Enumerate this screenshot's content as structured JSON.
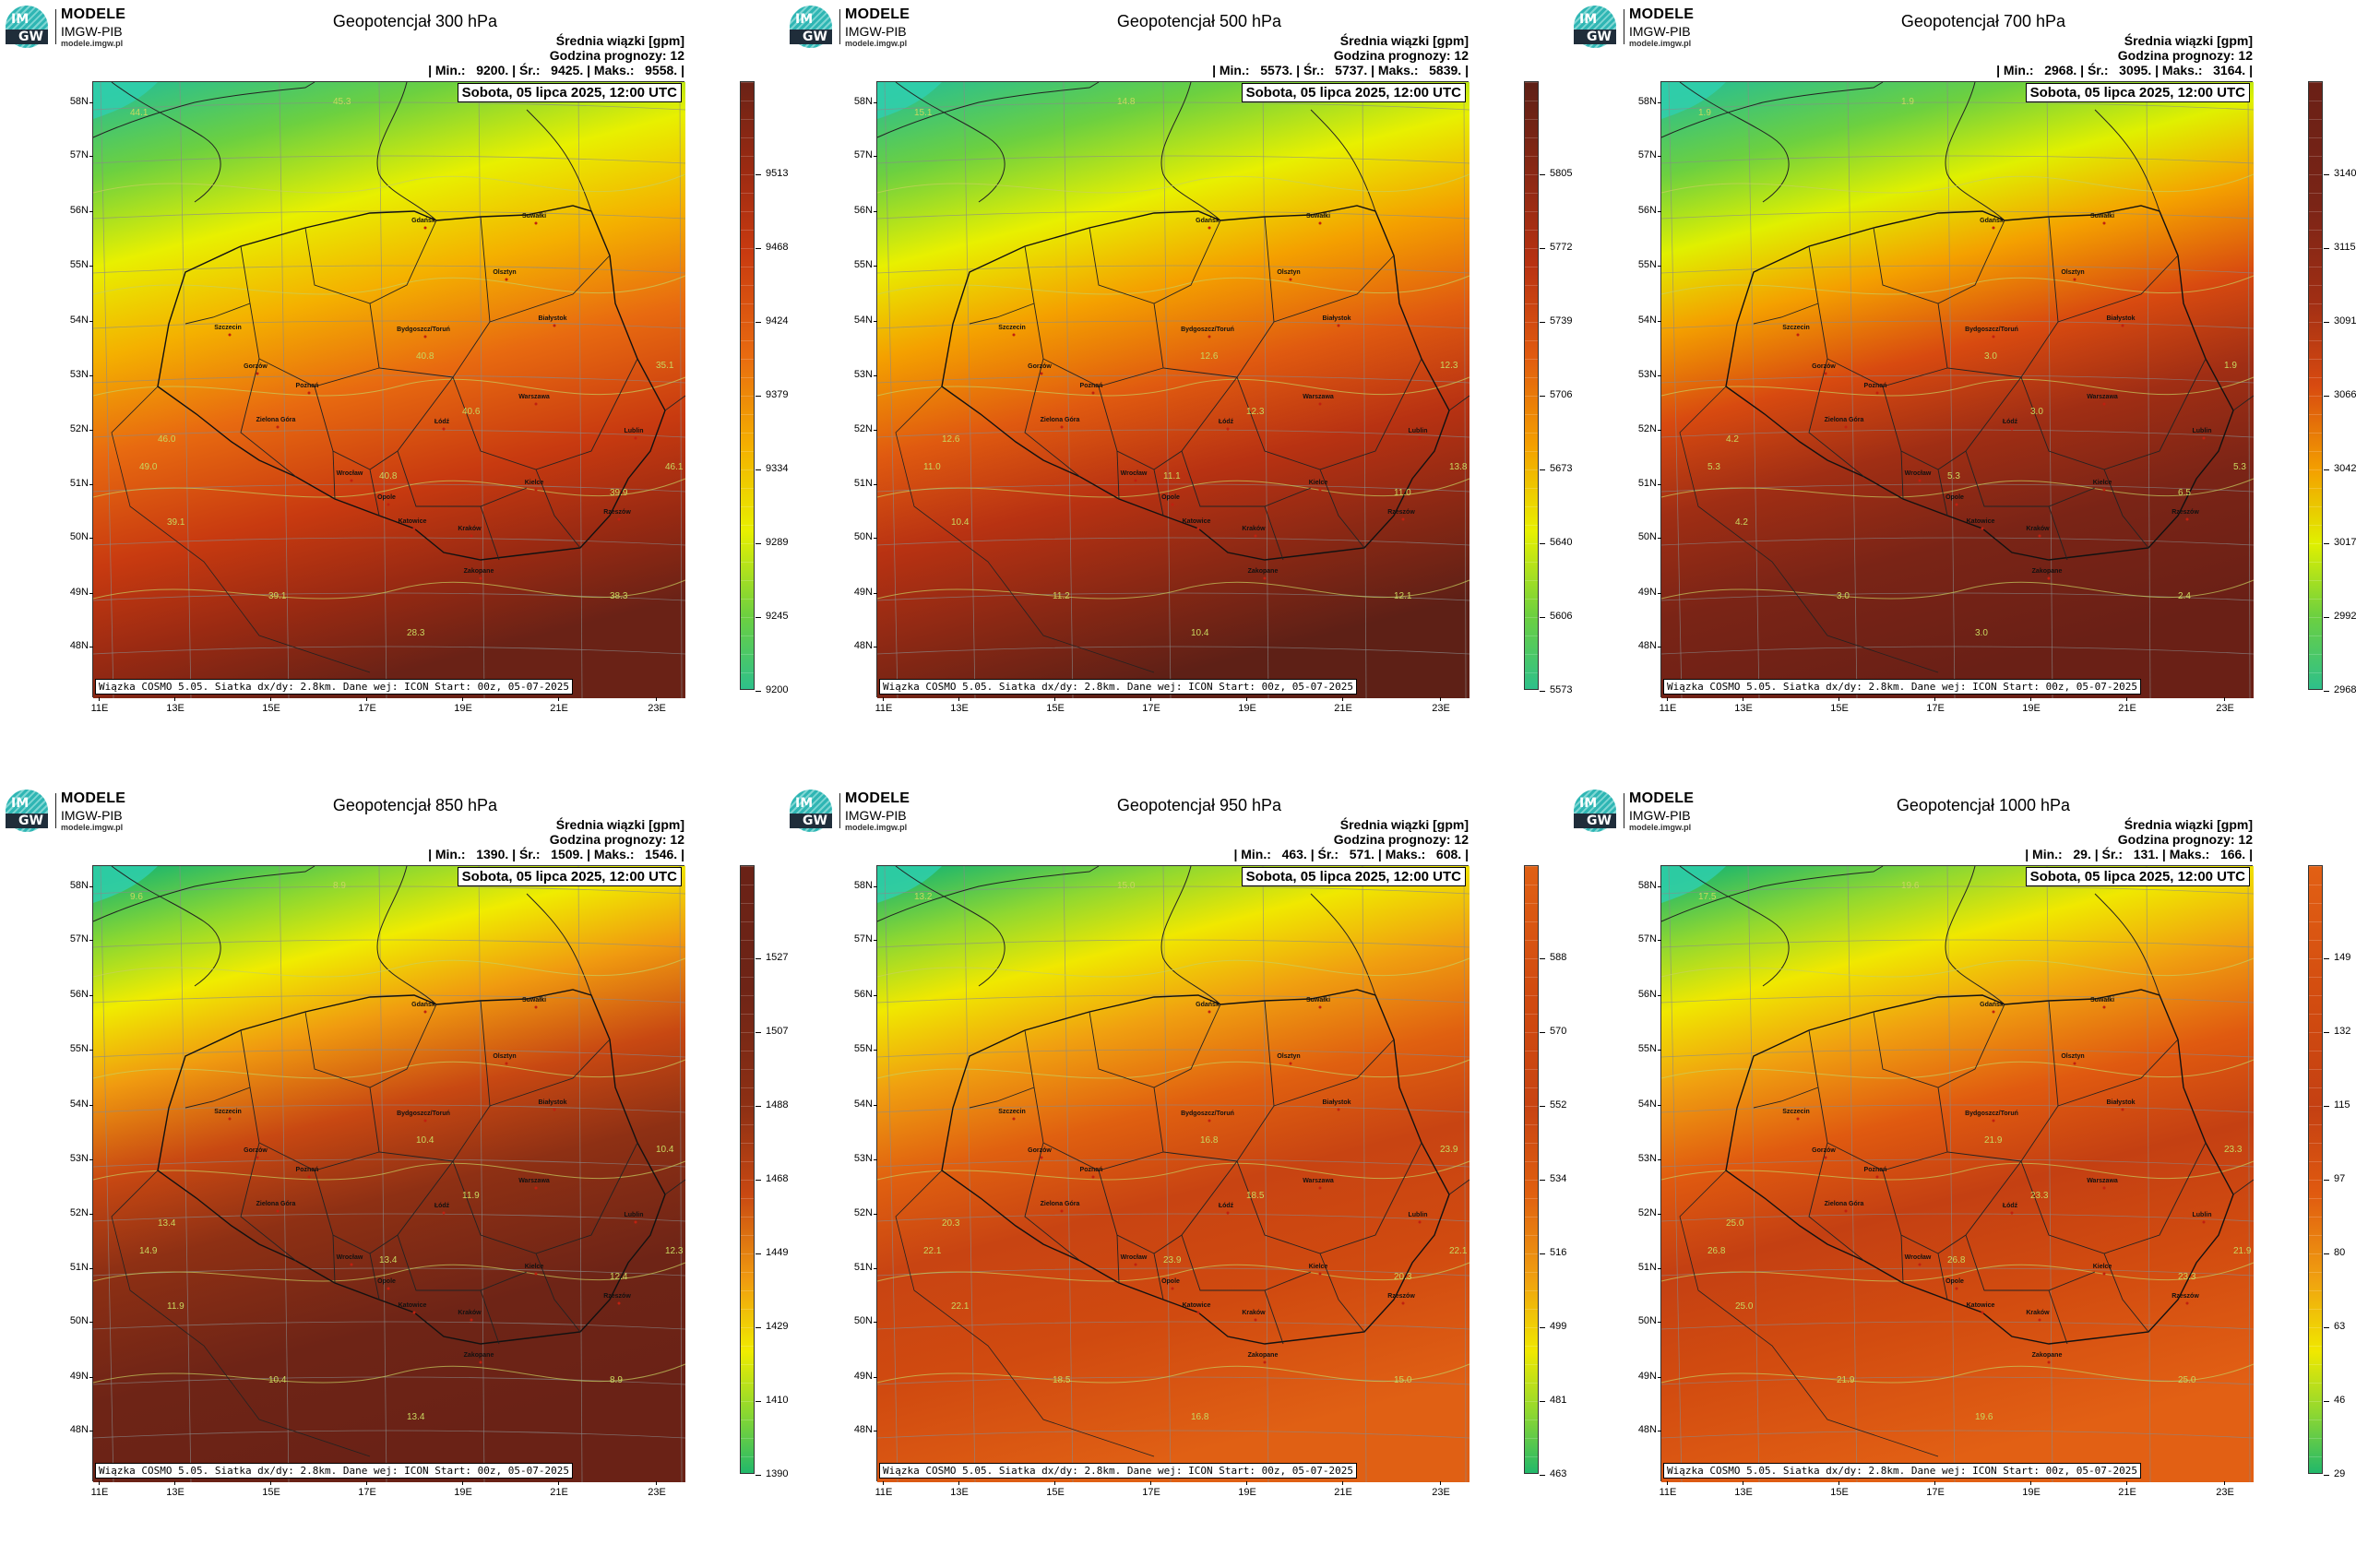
{
  "logo": {
    "line1": "MODELE",
    "line2": "IMGW-PIB",
    "line3": "modele.imgw.pl",
    "mark_top": "IM",
    "mark_bottom": "GW"
  },
  "info_title": "Średnia wiązki [gpm]",
  "forecast_hour": "Godzina prognozy: 12",
  "date_label": "Sobota, 05 lipca 2025, 12:00 UTC",
  "footer": "Wiązka COSMO 5.05. Siatka dx/dy: 2.8km. Dane wej: ICON Start: 00z, 05-07-2025",
  "lat_labels": [
    "58N",
    "57N",
    "56N",
    "55N",
    "54N",
    "53N",
    "52N",
    "51N",
    "50N",
    "49N",
    "48N"
  ],
  "lon_labels": [
    "11E",
    "13E",
    "15E",
    "17E",
    "19E",
    "21E",
    "23E"
  ],
  "colors": {
    "low": "#44e8d8",
    "green": "#22b14c",
    "yellow": "#f4f000",
    "orange": "#f08a10",
    "red": "#d83810",
    "dark": "#5a1e14"
  },
  "cities": [
    "Gdańsk",
    "Suwałki",
    "Olsztyn",
    "Szczecin",
    "Białystok",
    "Bydgoszcz/Toruń",
    "Gorzów",
    "Poznań",
    "Warszawa",
    "Zielona Góra",
    "Łódź",
    "Lublin",
    "Wrocław",
    "Opole",
    "Kielce",
    "Katowice",
    "Kraków",
    "Rzeszów",
    "Zakopane"
  ],
  "panels": [
    {
      "title": "Geopotencjał 300 hPa",
      "stats": "| Min.:   9200. | Śr.:   9425. | Maks.:   9558. |",
      "colorbar": [
        "9200",
        "9245",
        "9289",
        "9334",
        "9379",
        "9424",
        "9468",
        "9513"
      ],
      "contours": [
        "44.1",
        "45.3",
        "40.8",
        "40.6",
        "46.0",
        "49.0",
        "40.8",
        "39.1",
        "39.9",
        "39.1",
        "28.3",
        "38.3",
        "35.1",
        "46.1"
      ]
    },
    {
      "title": "Geopotencjał 500 hPa",
      "stats": "| Min.:   5573. | Śr.:   5737. | Maks.:   5839. |",
      "colorbar": [
        "5573",
        "5606",
        "5640",
        "5673",
        "5706",
        "5739",
        "5772",
        "5805"
      ],
      "contours": [
        "15.1",
        "14.8",
        "12.6",
        "12.3",
        "12.6",
        "11.0",
        "11.1",
        "10.4",
        "11.0",
        "11.2",
        "10.4",
        "12.1",
        "12.3",
        "13.8"
      ]
    },
    {
      "title": "Geopotencjał 700 hPa",
      "stats": "| Min.:   2968. | Śr.:   3095. | Maks.:   3164. |",
      "colorbar": [
        "2968",
        "2992",
        "3017",
        "3042",
        "3066",
        "3091",
        "3115",
        "3140"
      ],
      "contours": [
        "1.9",
        "1.9",
        "3.0",
        "3.0",
        "4.2",
        "5.3",
        "5.3",
        "4.2",
        "6.5",
        "3.0",
        "3.0",
        "2.4",
        "1.9",
        "5.3"
      ]
    },
    {
      "title": "Geopotencjał 850 hPa",
      "stats": "| Min.:   1390. | Śr.:   1509. | Maks.:   1546. |",
      "colorbar": [
        "1390",
        "1410",
        "1429",
        "1449",
        "1468",
        "1488",
        "1507",
        "1527"
      ],
      "contours": [
        "9.6",
        "8.9",
        "10.4",
        "11.9",
        "13.4",
        "14.9",
        "13.4",
        "11.9",
        "12.4",
        "10.4",
        "13.4",
        "8.9",
        "10.4",
        "12.3"
      ]
    },
    {
      "title": "Geopotencjał 950 hPa",
      "stats": "| Min.:   463. | Śr.:   571. | Maks.:   608. |",
      "colorbar": [
        "463",
        "481",
        "499",
        "516",
        "534",
        "552",
        "570",
        "588"
      ],
      "contours": [
        "13.2",
        "15.0",
        "16.8",
        "18.5",
        "20.3",
        "22.1",
        "23.9",
        "22.1",
        "20.3",
        "18.5",
        "16.8",
        "15.0",
        "23.9",
        "22.1"
      ]
    },
    {
      "title": "Geopotencjał 1000 hPa",
      "stats": "| Min.:   29. | Śr.:   131. | Maks.:   166. |",
      "colorbar": [
        "29",
        "46",
        "63",
        "80",
        "97",
        "115",
        "132",
        "149"
      ],
      "contours": [
        "17.5",
        "19.6",
        "21.9",
        "23.3",
        "25.0",
        "26.8",
        "26.8",
        "25.0",
        "23.3",
        "21.9",
        "19.6",
        "25.0",
        "23.3",
        "21.9"
      ]
    }
  ]
}
